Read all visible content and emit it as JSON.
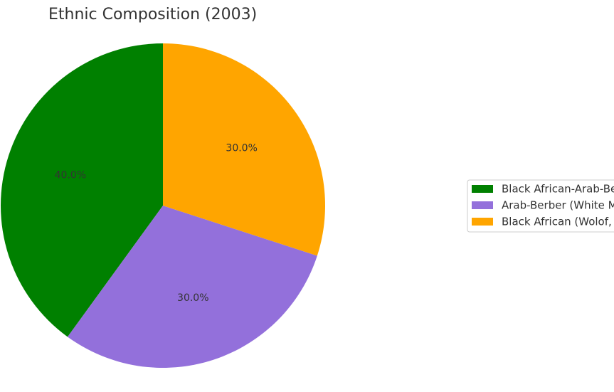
{
  "chart_data": {
    "type": "pie",
    "title": "Ethnic Composition (2003)",
    "categories": [
      "Black African-Arab-Be",
      "Arab-Berber (White M",
      "Black African (Wolof,"
    ],
    "values": [
      40.0,
      30.0,
      30.0
    ],
    "value_labels": [
      "40.0%",
      "30.0%",
      "30.0%"
    ],
    "colors": [
      "#008000",
      "#9370db",
      "#ffa500"
    ],
    "legend": "right"
  }
}
